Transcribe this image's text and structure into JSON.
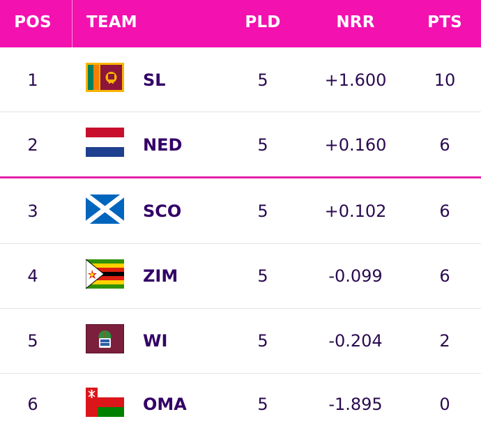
{
  "header": {
    "pos": "POS",
    "team": "TEAM",
    "pld": "PLD",
    "nrr": "NRR",
    "pts": "PTS"
  },
  "colors": {
    "header_bg": "#f311b0",
    "header_text": "#ffffff",
    "body_text": "#2a0a4f",
    "qualification_line": "#e41fa9"
  },
  "rows": [
    {
      "pos": "1",
      "team": "SL",
      "flag_icon": "sri-lanka-flag-icon",
      "pld": "5",
      "nrr": "+1.600",
      "pts": "10"
    },
    {
      "pos": "2",
      "team": "NED",
      "flag_icon": "netherlands-flag-icon",
      "pld": "5",
      "nrr": "+0.160",
      "pts": "6"
    },
    {
      "pos": "3",
      "team": "SCO",
      "flag_icon": "scotland-flag-icon",
      "pld": "5",
      "nrr": "+0.102",
      "pts": "6"
    },
    {
      "pos": "4",
      "team": "ZIM",
      "flag_icon": "zimbabwe-flag-icon",
      "pld": "5",
      "nrr": "-0.099",
      "pts": "6"
    },
    {
      "pos": "5",
      "team": "WI",
      "flag_icon": "west-indies-flag-icon",
      "pld": "5",
      "nrr": "-0.204",
      "pts": "2"
    },
    {
      "pos": "6",
      "team": "OMA",
      "flag_icon": "oman-flag-icon",
      "pld": "5",
      "nrr": "-1.895",
      "pts": "0"
    }
  ]
}
